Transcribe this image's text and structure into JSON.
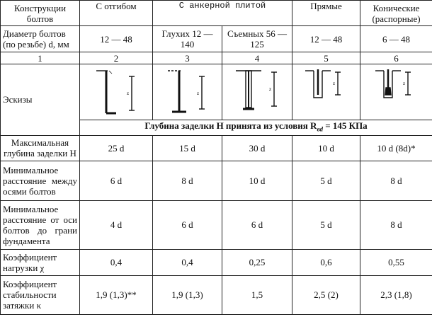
{
  "header": {
    "col1": "Конструкции болтов",
    "col2": "С отгибом",
    "col3": "С анкерной плитой",
    "col4": "Прямые",
    "col5": "Конические (распорные)"
  },
  "diameter": {
    "label": "Диаметр болтов (по резьбе) d, мм",
    "c2": "12 — 48",
    "c3": "Глухих 12 — 140",
    "c4": "Съемных 56 — 125",
    "c5": "12 — 48",
    "c6": "6 — 48"
  },
  "numbers": [
    "1",
    "2",
    "3",
    "4",
    "5",
    "6"
  ],
  "sketches": {
    "label": "Эскизы",
    "marker": "z"
  },
  "depth_note": {
    "prefix": "Глубина заделки H принята из условия R",
    "subscript": "вd",
    "suffix": " = 145 КПа"
  },
  "rows": [
    {
      "label": "Максимальная глубина заделки H",
      "values": [
        "25 d",
        "15 d",
        "30 d",
        "10 d",
        "10 d (8d)*"
      ]
    },
    {
      "label": "Минимальное расстояние между осями болтов",
      "values": [
        "6 d",
        "8 d",
        "10 d",
        "5 d",
        "8 d"
      ]
    },
    {
      "label": "Минимальное расстояние от оси болтов до грани фундамента",
      "values": [
        "4 d",
        "6 d",
        "6 d",
        "5 d",
        "8 d"
      ]
    },
    {
      "label": "Коэффициент нагрузки χ",
      "values": [
        "0,4",
        "0,4",
        "0,25",
        "0,6",
        "0,55"
      ]
    },
    {
      "label": "Коэффициент стабильности затяжки κ",
      "values": [
        "1,9 (1,3)**",
        "1,9 (1,3)",
        "1,5",
        "2,5 (2)",
        "2,3 (1,8)"
      ]
    }
  ]
}
